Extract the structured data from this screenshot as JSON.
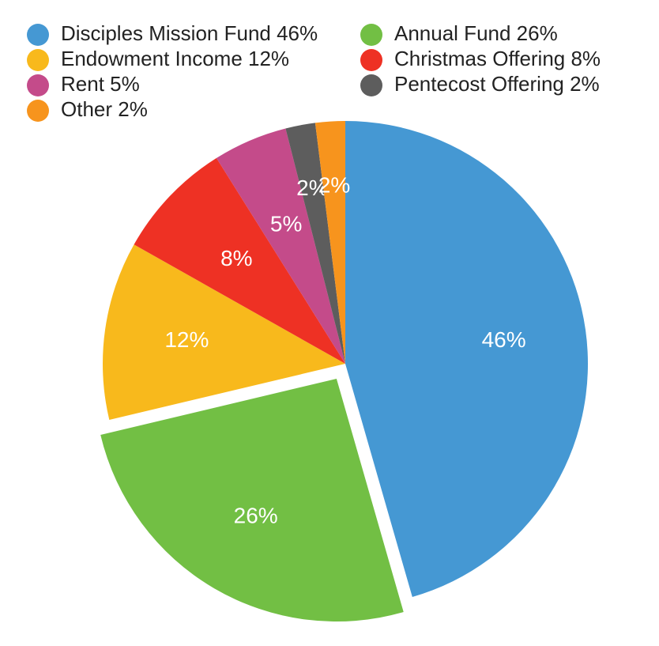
{
  "chart_data": {
    "type": "pie",
    "categories": [
      "Disciples Mission Fund 46%",
      "Annual Fund 26%",
      "Endowment Income 12%",
      "Christmas Offering 8%",
      "Rent 5%",
      "Pentecost Offering 2%",
      "Other 2%"
    ],
    "values": [
      46,
      26,
      12,
      8,
      5,
      2,
      2
    ],
    "value_labels": [
      "46%",
      "26%",
      "12%",
      "8%",
      "5%",
      "2%",
      "2%"
    ],
    "colors": [
      "#4598d3",
      "#72bf44",
      "#f8b91c",
      "#ee3124",
      "#c44b8a",
      "#5d5d5d",
      "#f7941d"
    ],
    "exploded": [
      1
    ]
  }
}
